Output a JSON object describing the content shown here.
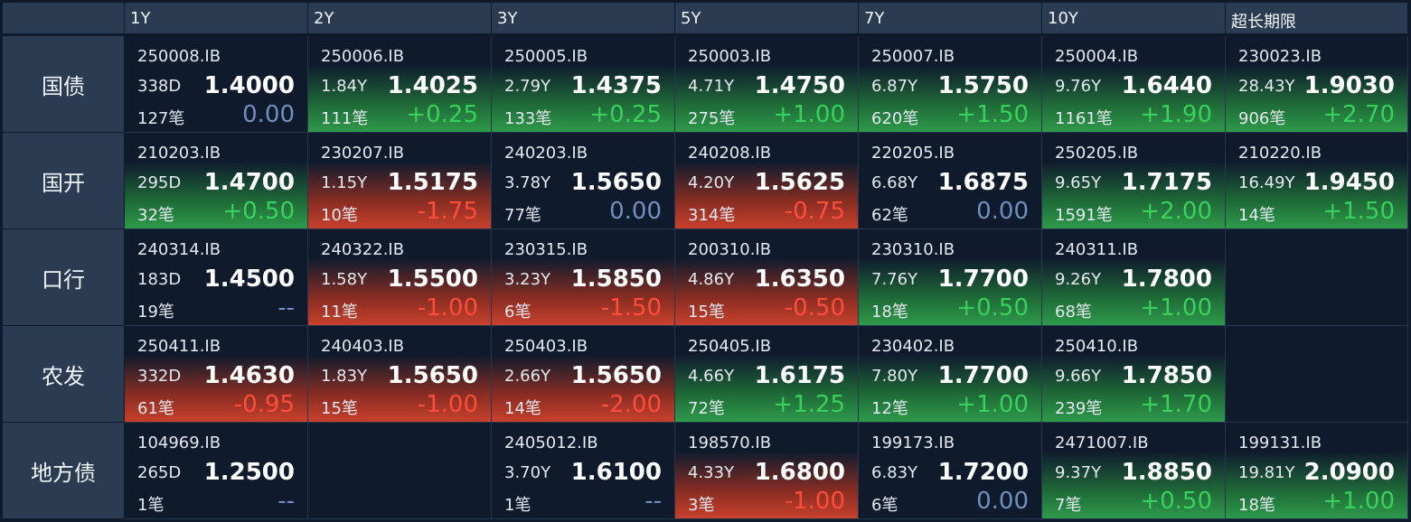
{
  "colors": {
    "up": "#2e9a4a",
    "down": "#c8402c",
    "zero": "#6f8fbf",
    "header_bg": "#2a3b52",
    "bg": "#0f1b2d"
  },
  "header": {
    "columns": [
      "1Y",
      "2Y",
      "3Y",
      "5Y",
      "7Y",
      "10Y",
      "超长期限"
    ]
  },
  "rows": [
    {
      "label": "国债",
      "cells": [
        {
          "code": "250008.IB",
          "tenor": "338D",
          "yield": "1.4000",
          "deals": "127笔",
          "change": "0.00",
          "trend": "zero"
        },
        {
          "code": "250006.IB",
          "tenor": "1.84Y",
          "yield": "1.4025",
          "deals": "111笔",
          "change": "+0.25",
          "trend": "up"
        },
        {
          "code": "250005.IB",
          "tenor": "2.79Y",
          "yield": "1.4375",
          "deals": "133笔",
          "change": "+0.25",
          "trend": "up"
        },
        {
          "code": "250003.IB",
          "tenor": "4.71Y",
          "yield": "1.4750",
          "deals": "275笔",
          "change": "+1.00",
          "trend": "up"
        },
        {
          "code": "250007.IB",
          "tenor": "6.87Y",
          "yield": "1.5750",
          "deals": "620笔",
          "change": "+1.50",
          "trend": "up"
        },
        {
          "code": "250004.IB",
          "tenor": "9.76Y",
          "yield": "1.6440",
          "deals": "1161笔",
          "change": "+1.90",
          "trend": "up"
        },
        {
          "code": "230023.IB",
          "tenor": "28.43Y",
          "yield": "1.9030",
          "deals": "906笔",
          "change": "+2.70",
          "trend": "up"
        }
      ]
    },
    {
      "label": "国开",
      "cells": [
        {
          "code": "210203.IB",
          "tenor": "295D",
          "yield": "1.4700",
          "deals": "32笔",
          "change": "+0.50",
          "trend": "up"
        },
        {
          "code": "230207.IB",
          "tenor": "1.15Y",
          "yield": "1.5175",
          "deals": "10笔",
          "change": "-1.75",
          "trend": "down"
        },
        {
          "code": "240203.IB",
          "tenor": "3.78Y",
          "yield": "1.5650",
          "deals": "77笔",
          "change": "0.00",
          "trend": "zero"
        },
        {
          "code": "240208.IB",
          "tenor": "4.20Y",
          "yield": "1.5625",
          "deals": "314笔",
          "change": "-0.75",
          "trend": "down"
        },
        {
          "code": "220205.IB",
          "tenor": "6.68Y",
          "yield": "1.6875",
          "deals": "62笔",
          "change": "0.00",
          "trend": "zero"
        },
        {
          "code": "250205.IB",
          "tenor": "9.65Y",
          "yield": "1.7175",
          "deals": "1591笔",
          "change": "+2.00",
          "trend": "up"
        },
        {
          "code": "210220.IB",
          "tenor": "16.49Y",
          "yield": "1.9450",
          "deals": "14笔",
          "change": "+1.50",
          "trend": "up"
        }
      ]
    },
    {
      "label": "口行",
      "cells": [
        {
          "code": "240314.IB",
          "tenor": "183D",
          "yield": "1.4500",
          "deals": "19笔",
          "change": "--",
          "trend": "none"
        },
        {
          "code": "240322.IB",
          "tenor": "1.58Y",
          "yield": "1.5500",
          "deals": "11笔",
          "change": "-1.00",
          "trend": "down"
        },
        {
          "code": "230315.IB",
          "tenor": "3.23Y",
          "yield": "1.5850",
          "deals": "6笔",
          "change": "-1.50",
          "trend": "down"
        },
        {
          "code": "200310.IB",
          "tenor": "4.86Y",
          "yield": "1.6350",
          "deals": "15笔",
          "change": "-0.50",
          "trend": "down"
        },
        {
          "code": "230310.IB",
          "tenor": "7.76Y",
          "yield": "1.7700",
          "deals": "18笔",
          "change": "+0.50",
          "trend": "up"
        },
        {
          "code": "240311.IB",
          "tenor": "9.26Y",
          "yield": "1.7800",
          "deals": "68笔",
          "change": "+1.00",
          "trend": "up"
        },
        null
      ]
    },
    {
      "label": "农发",
      "cells": [
        {
          "code": "250411.IB",
          "tenor": "332D",
          "yield": "1.4630",
          "deals": "61笔",
          "change": "-0.95",
          "trend": "down"
        },
        {
          "code": "240403.IB",
          "tenor": "1.83Y",
          "yield": "1.5650",
          "deals": "15笔",
          "change": "-1.00",
          "trend": "down"
        },
        {
          "code": "250403.IB",
          "tenor": "2.66Y",
          "yield": "1.5650",
          "deals": "14笔",
          "change": "-2.00",
          "trend": "down"
        },
        {
          "code": "250405.IB",
          "tenor": "4.66Y",
          "yield": "1.6175",
          "deals": "72笔",
          "change": "+1.25",
          "trend": "up"
        },
        {
          "code": "230402.IB",
          "tenor": "7.80Y",
          "yield": "1.7700",
          "deals": "12笔",
          "change": "+1.00",
          "trend": "up"
        },
        {
          "code": "250410.IB",
          "tenor": "9.66Y",
          "yield": "1.7850",
          "deals": "239笔",
          "change": "+1.70",
          "trend": "up"
        },
        null
      ]
    },
    {
      "label": "地方债",
      "cells": [
        {
          "code": "104969.IB",
          "tenor": "265D",
          "yield": "1.2500",
          "deals": "1笔",
          "change": "--",
          "trend": "none"
        },
        null,
        {
          "code": "2405012.IB",
          "tenor": "3.70Y",
          "yield": "1.6100",
          "deals": "1笔",
          "change": "--",
          "trend": "none"
        },
        {
          "code": "198570.IB",
          "tenor": "4.33Y",
          "yield": "1.6800",
          "deals": "3笔",
          "change": "-1.00",
          "trend": "down"
        },
        {
          "code": "199173.IB",
          "tenor": "6.83Y",
          "yield": "1.7200",
          "deals": "6笔",
          "change": "0.00",
          "trend": "zero"
        },
        {
          "code": "2471007.IB",
          "tenor": "9.37Y",
          "yield": "1.8850",
          "deals": "7笔",
          "change": "+0.50",
          "trend": "up"
        },
        {
          "code": "199131.IB",
          "tenor": "19.81Y",
          "yield": "2.0900",
          "deals": "18笔",
          "change": "+1.00",
          "trend": "up"
        }
      ]
    }
  ]
}
